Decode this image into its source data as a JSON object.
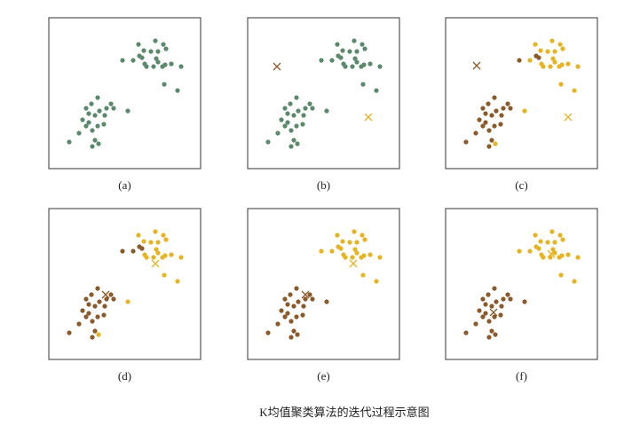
{
  "caption": "K均值聚类算法的迭代过程示意图",
  "chart_data": [
    {
      "type": "scatter",
      "label": "(a)",
      "xlim": [
        0,
        171
      ],
      "ylim": [
        0,
        170
      ],
      "series": [
        {
          "color": "#5a8a6a",
          "marker": "dot",
          "x": [
            101,
            120,
            129,
            107,
            115,
            123,
            132,
            83,
            95,
            102,
            105,
            108,
            118,
            123,
            128,
            131,
            138,
            149,
            110,
            130,
            145,
            121,
            55,
            48,
            42,
            70,
            73,
            65,
            57,
            52,
            45,
            89,
            63,
            38,
            45,
            34,
            55,
            49,
            62,
            23,
            52,
            56,
            49,
            42
          ],
          "y": [
            140,
            144,
            140,
            133,
            132,
            132,
            135,
            122,
            122,
            127,
            125,
            118,
            115,
            120,
            115,
            117,
            118,
            115,
            115,
            95,
            88,
            124,
            80,
            73,
            68,
            73,
            68,
            68,
            65,
            60,
            62,
            65,
            60,
            55,
            52,
            40,
            48,
            43,
            50,
            30,
            32,
            28,
            25,
            48
          ]
        }
      ]
    },
    {
      "type": "scatter",
      "label": "(b)",
      "xlim": [
        0,
        171
      ],
      "ylim": [
        0,
        170
      ],
      "series": [
        {
          "color": "#5a8a6a",
          "marker": "dot",
          "x": [
            101,
            120,
            129,
            107,
            115,
            123,
            132,
            83,
            95,
            102,
            105,
            108,
            118,
            123,
            128,
            131,
            138,
            149,
            110,
            130,
            145,
            121,
            55,
            48,
            42,
            70,
            73,
            65,
            57,
            52,
            45,
            89,
            63,
            38,
            45,
            34,
            55,
            49,
            62,
            23,
            52,
            56,
            49,
            42
          ],
          "y": [
            140,
            144,
            140,
            133,
            132,
            132,
            135,
            122,
            122,
            127,
            125,
            118,
            115,
            120,
            115,
            117,
            118,
            115,
            115,
            95,
            88,
            124,
            80,
            73,
            68,
            73,
            68,
            68,
            65,
            60,
            62,
            65,
            60,
            55,
            52,
            40,
            48,
            43,
            50,
            30,
            32,
            28,
            25,
            48
          ]
        },
        {
          "color": "#8b5a2b",
          "marker": "x",
          "x": [
            33
          ],
          "y": [
            115
          ]
        },
        {
          "color": "#e6b422",
          "marker": "x",
          "x": [
            136
          ],
          "y": [
            58
          ]
        }
      ]
    },
    {
      "type": "scatter",
      "label": "(c)",
      "xlim": [
        0,
        171
      ],
      "ylim": [
        0,
        170
      ],
      "series": [
        {
          "color": "#8b5a2b",
          "marker": "dot",
          "x": [
            55,
            48,
            42,
            70,
            73,
            65,
            57,
            52,
            45,
            63,
            38,
            45,
            34,
            55,
            49,
            62,
            23,
            52,
            49,
            42,
            83,
            102,
            105
          ],
          "y": [
            80,
            73,
            68,
            73,
            68,
            68,
            65,
            60,
            62,
            60,
            55,
            52,
            40,
            48,
            43,
            50,
            30,
            32,
            25,
            48,
            122,
            127,
            125
          ]
        },
        {
          "color": "#e6b422",
          "marker": "dot",
          "x": [
            101,
            120,
            129,
            107,
            115,
            123,
            132,
            95,
            108,
            118,
            123,
            128,
            131,
            138,
            149,
            110,
            130,
            145,
            121,
            89,
            56
          ],
          "y": [
            140,
            144,
            140,
            133,
            132,
            132,
            135,
            122,
            118,
            115,
            120,
            115,
            117,
            118,
            115,
            115,
            95,
            88,
            124,
            65,
            28
          ]
        },
        {
          "color": "#8b5a2b",
          "marker": "x",
          "x": [
            35
          ],
          "y": [
            116
          ]
        },
        {
          "color": "#e6b422",
          "marker": "x",
          "x": [
            138
          ],
          "y": [
            58
          ]
        }
      ]
    },
    {
      "type": "scatter",
      "label": "(d)",
      "xlim": [
        0,
        171
      ],
      "ylim": [
        0,
        170
      ],
      "series": [
        {
          "color": "#8b5a2b",
          "marker": "dot",
          "x": [
            55,
            48,
            42,
            70,
            73,
            65,
            57,
            52,
            45,
            63,
            38,
            45,
            34,
            55,
            49,
            62,
            23,
            52,
            49,
            42,
            83,
            95,
            102,
            105
          ],
          "y": [
            80,
            73,
            68,
            73,
            68,
            68,
            65,
            60,
            62,
            60,
            55,
            52,
            40,
            48,
            43,
            50,
            30,
            32,
            25,
            48,
            122,
            122,
            127,
            125
          ]
        },
        {
          "color": "#e6b422",
          "marker": "dot",
          "x": [
            101,
            120,
            129,
            107,
            115,
            123,
            132,
            108,
            118,
            123,
            128,
            131,
            138,
            149,
            110,
            130,
            145,
            121,
            89,
            56
          ],
          "y": [
            140,
            144,
            140,
            133,
            132,
            132,
            135,
            118,
            115,
            120,
            115,
            117,
            118,
            115,
            115,
            95,
            88,
            124,
            65,
            28
          ]
        },
        {
          "color": "#8b5a2b",
          "marker": "x",
          "x": [
            64
          ],
          "y": [
            73
          ]
        },
        {
          "color": "#e6b422",
          "marker": "x",
          "x": [
            120
          ],
          "y": [
            108
          ]
        }
      ]
    },
    {
      "type": "scatter",
      "label": "(e)",
      "xlim": [
        0,
        171
      ],
      "ylim": [
        0,
        170
      ],
      "series": [
        {
          "color": "#8b5a2b",
          "marker": "dot",
          "x": [
            55,
            48,
            42,
            70,
            73,
            65,
            57,
            52,
            45,
            89,
            63,
            38,
            45,
            34,
            55,
            49,
            62,
            23,
            52,
            56,
            49,
            42
          ],
          "y": [
            80,
            73,
            68,
            73,
            68,
            68,
            65,
            60,
            62,
            65,
            60,
            55,
            52,
            40,
            48,
            43,
            50,
            30,
            32,
            28,
            25,
            48
          ]
        },
        {
          "color": "#e6b422",
          "marker": "dot",
          "x": [
            101,
            120,
            129,
            107,
            115,
            123,
            132,
            83,
            95,
            102,
            105,
            108,
            118,
            123,
            128,
            131,
            138,
            149,
            110,
            130,
            145,
            121
          ],
          "y": [
            140,
            144,
            140,
            133,
            132,
            132,
            135,
            122,
            122,
            127,
            125,
            118,
            115,
            120,
            115,
            117,
            118,
            115,
            115,
            95,
            88,
            124
          ]
        },
        {
          "color": "#8b5a2b",
          "marker": "x",
          "x": [
            65
          ],
          "y": [
            73
          ]
        },
        {
          "color": "#e6b422",
          "marker": "x",
          "x": [
            119
          ],
          "y": [
            108
          ]
        }
      ]
    },
    {
      "type": "scatter",
      "label": "(f)",
      "xlim": [
        0,
        171
      ],
      "ylim": [
        0,
        170
      ],
      "series": [
        {
          "color": "#8b5a2b",
          "marker": "dot",
          "x": [
            55,
            48,
            42,
            70,
            73,
            65,
            57,
            52,
            45,
            89,
            63,
            38,
            45,
            34,
            55,
            49,
            62,
            23,
            52,
            56,
            49,
            42
          ],
          "y": [
            80,
            73,
            68,
            73,
            68,
            68,
            65,
            60,
            62,
            65,
            60,
            55,
            52,
            40,
            48,
            43,
            50,
            30,
            32,
            28,
            25,
            48
          ]
        },
        {
          "color": "#e6b422",
          "marker": "dot",
          "x": [
            101,
            120,
            129,
            107,
            115,
            123,
            132,
            83,
            95,
            102,
            105,
            108,
            118,
            123,
            128,
            131,
            138,
            149,
            110,
            130,
            145,
            121
          ],
          "y": [
            140,
            144,
            140,
            133,
            132,
            132,
            135,
            122,
            122,
            127,
            125,
            118,
            115,
            120,
            115,
            117,
            118,
            115,
            115,
            95,
            88,
            124
          ]
        },
        {
          "color": "#8b5a2b",
          "marker": "x",
          "x": [
            54
          ],
          "y": [
            53
          ]
        },
        {
          "color": "#e6b422",
          "marker": "x",
          "x": [
            119
          ],
          "y": [
            119
          ]
        }
      ]
    }
  ]
}
